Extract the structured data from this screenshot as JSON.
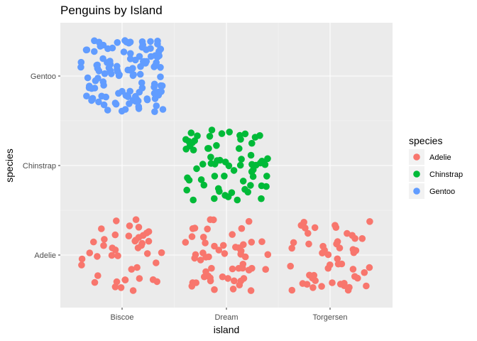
{
  "chart_data": {
    "type": "scatter",
    "title": "Penguins by Island",
    "xlabel": "island",
    "ylabel": "species",
    "x_categories": [
      "Biscoe",
      "Dream",
      "Torgersen"
    ],
    "y_categories": [
      "Adelie",
      "Chinstrap",
      "Gentoo"
    ],
    "jitter": 0.4,
    "grid": true,
    "legend": {
      "title": "species",
      "position": "right",
      "entries": [
        "Adelie",
        "Chinstrap",
        "Gentoo"
      ]
    },
    "colors": {
      "Adelie": "#F8766D",
      "Chinstrap": "#00BA38",
      "Gentoo": "#619CFF"
    },
    "groups": [
      {
        "species": "Adelie",
        "island": "Biscoe",
        "count": 44
      },
      {
        "species": "Adelie",
        "island": "Dream",
        "count": 56
      },
      {
        "species": "Adelie",
        "island": "Torgersen",
        "count": 52
      },
      {
        "species": "Chinstrap",
        "island": "Dream",
        "count": 68
      },
      {
        "species": "Gentoo",
        "island": "Biscoe",
        "count": 124
      }
    ]
  }
}
